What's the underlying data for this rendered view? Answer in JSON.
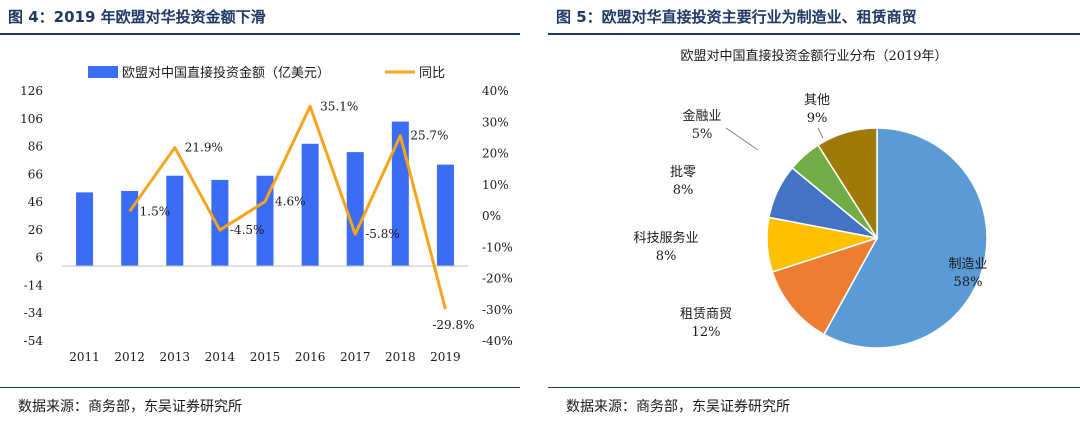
{
  "left": {
    "figure_title": "图 4：2019 年欧盟对华投资金额下滑",
    "source": "数据来源：商务部，东吴证券研究所",
    "colors": {
      "bar": "#3a6cf4",
      "line": "#f7a41d"
    },
    "chart_data": {
      "type": "bar+line",
      "categories": [
        "2011",
        "2012",
        "2013",
        "2014",
        "2015",
        "2016",
        "2017",
        "2018",
        "2019"
      ],
      "series": [
        {
          "name": "欧盟对中国直接投资金额（亿美元）",
          "kind": "bar",
          "axis": "left",
          "values": [
            53,
            54,
            65,
            62,
            65,
            88,
            82,
            104,
            73
          ]
        },
        {
          "name": "同比",
          "kind": "line",
          "axis": "right",
          "values": [
            null,
            1.5,
            21.9,
            -4.5,
            4.6,
            35.1,
            -5.8,
            25.7,
            -29.8
          ],
          "labels": [
            "",
            "1.5%",
            "21.9%",
            "-4.5%",
            "4.6%",
            "35.1%",
            "-5.8%",
            "25.7%",
            "-29.8%"
          ]
        }
      ],
      "y_left": {
        "ylim": [
          -54,
          126
        ],
        "ticks": [
          "126",
          "106",
          "86",
          "66",
          "46",
          "26",
          "6",
          "-14",
          "-34",
          "-54"
        ],
        "tick_values": [
          126,
          106,
          86,
          66,
          46,
          26,
          6,
          -14,
          -34,
          -54
        ]
      },
      "y_right": {
        "ylim": [
          -40,
          40
        ],
        "ticks": [
          "40%",
          "30%",
          "20%",
          "10%",
          "0%",
          "-10%",
          "-20%",
          "-30%",
          "-40%"
        ],
        "tick_values": [
          40,
          30,
          20,
          10,
          0,
          -10,
          -20,
          -30,
          -40
        ]
      },
      "bar_baseline": 0,
      "legend_position": "top-center"
    }
  },
  "right": {
    "figure_title": "图 5：欧盟对华直接投资主要行业为制造业、租赁商贸",
    "source": "数据来源：商务部，东吴证券研究所",
    "chart_data": {
      "type": "pie",
      "title": "欧盟对中国直接投资金额行业分布（2019年）",
      "slices": [
        {
          "name": "制造业",
          "value": 58,
          "label": "58%",
          "color": "#5b9bd5"
        },
        {
          "name": "租赁商贸",
          "value": 12,
          "label": "12%",
          "color": "#ed7d31"
        },
        {
          "name": "科技服务业",
          "value": 8,
          "label": "8%",
          "color": "#ffc000"
        },
        {
          "name": "批零",
          "value": 8,
          "label": "8%",
          "color": "#4472c4"
        },
        {
          "name": "金融业",
          "value": 5,
          "label": "5%",
          "color": "#70ad47"
        },
        {
          "name": "其他",
          "value": 9,
          "label": "9%",
          "color": "#9e7b09"
        }
      ]
    }
  }
}
